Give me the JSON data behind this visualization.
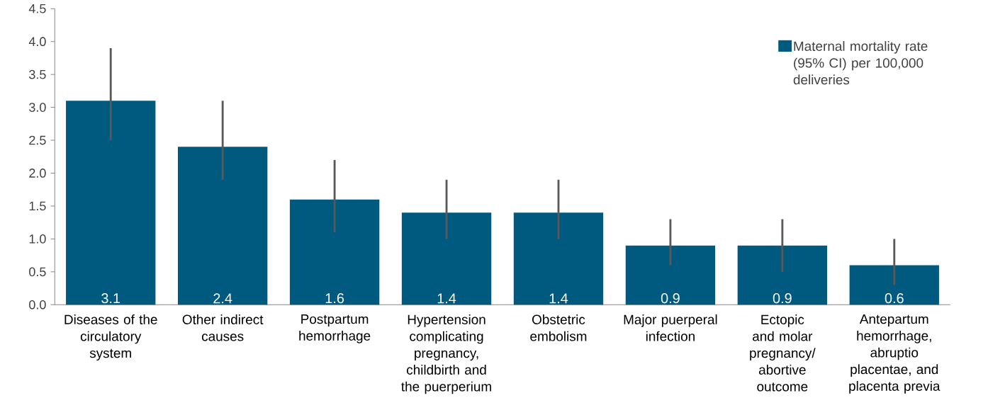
{
  "chart_data": {
    "type": "bar",
    "categories": [
      "Diseases of the circulatory system",
      "Other indirect causes",
      "Postpartum hemorrhage",
      "Hypertension complicating pregnancy, childbirth and the puerperium",
      "Obstetric embolism",
      "Major puerperal infection",
      "Ectopic and molar pregnancy/ abortive outcome",
      "Antepartum hemorrhage, abruptio placentae, and placenta previa"
    ],
    "series": [
      {
        "name": "Maternal mortality rate (95% CI) per 100,000 deliveries",
        "color": "#005a7f",
        "values": [
          3.1,
          2.4,
          1.6,
          1.4,
          1.4,
          0.9,
          0.9,
          0.6
        ],
        "errors": [
          [
            2.5,
            3.9
          ],
          [
            1.9,
            3.1
          ],
          [
            1.1,
            2.2
          ],
          [
            1.0,
            1.9
          ],
          [
            1.0,
            1.9
          ],
          [
            0.6,
            1.3
          ],
          [
            0.5,
            1.3
          ],
          [
            0.3,
            1.0
          ]
        ]
      }
    ],
    "ylim": [
      0,
      4.5
    ],
    "yticks": [
      {
        "value": 0,
        "label": "0.0"
      },
      {
        "value": 0.5,
        "label": "0.5"
      },
      {
        "value": 1,
        "label": "1.0"
      },
      {
        "value": 1.5,
        "label": "1.5"
      },
      {
        "value": 2,
        "label": "2.0"
      },
      {
        "value": 2.5,
        "label": "2.5"
      },
      {
        "value": 3,
        "label": "3.0"
      },
      {
        "value": 3.5,
        "label": "3.5"
      },
      {
        "value": 4,
        "label": "4.0"
      },
      {
        "value": 4.5,
        "label": "4.5"
      }
    ],
    "data_labels": true,
    "legend": "top right",
    "grid": false
  }
}
